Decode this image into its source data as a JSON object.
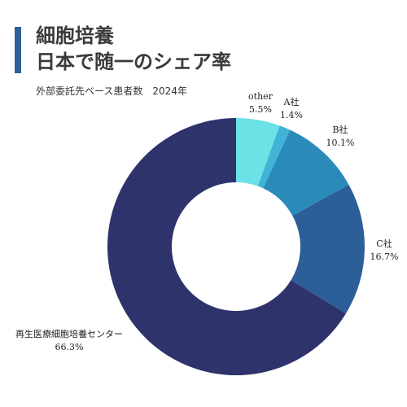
{
  "header": {
    "title_line1": "細胞培養",
    "title_line2": "日本で随一のシェア率",
    "subtitle": "外部委託先ベース患者数　2024年"
  },
  "chart_data": {
    "type": "pie",
    "donut": true,
    "title": "細胞培養 日本で随一のシェア率",
    "subtitle": "外部委託先ベース患者数　2024年",
    "start_angle_deg": 0,
    "direction": "clockwise",
    "slices": [
      {
        "name": "other",
        "value": 5.5,
        "label": "5.5%",
        "color": "#6ae2e6"
      },
      {
        "name": "A社",
        "value": 1.4,
        "label": "1.4%",
        "color": "#3fb4d6"
      },
      {
        "name": "B社",
        "value": 10.1,
        "label": "10.1%",
        "color": "#2a8bbb"
      },
      {
        "name": "C社",
        "value": 16.7,
        "label": "16.7%",
        "color": "#2c5e98"
      },
      {
        "name": "再生医療細胞培養センター",
        "value": 66.3,
        "label": "66.3%",
        "color": "#2f336b"
      }
    ]
  }
}
